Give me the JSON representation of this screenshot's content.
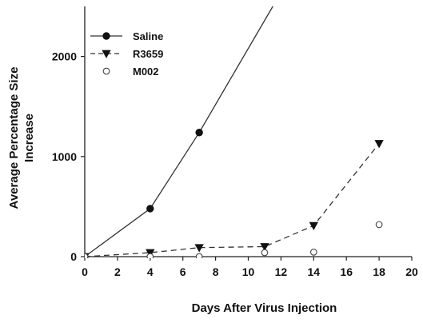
{
  "chart_data": {
    "type": "line",
    "title": "",
    "xlabel": "Days After Virus Injection",
    "ylabel_lines": [
      "Average Percentage Size",
      "Increase"
    ],
    "xlim": [
      0,
      20
    ],
    "ylim": [
      0,
      2500
    ],
    "x_ticks": [
      0,
      2,
      4,
      6,
      8,
      10,
      12,
      14,
      16,
      18,
      20
    ],
    "y_ticks": [
      0,
      1000,
      2000
    ],
    "grid": false,
    "legend_position": "top-left",
    "series": [
      {
        "name": "Saline",
        "marker": "filled-circle",
        "line": "solid",
        "color": "#111111",
        "x": [
          0,
          4,
          7,
          11.5
        ],
        "y": [
          0,
          480,
          1240,
          2500
        ],
        "marker_count": 3
      },
      {
        "name": "R3659",
        "marker": "filled-triangle-down",
        "line": "dashed",
        "color": "#111111",
        "x": [
          0,
          4,
          7,
          11,
          14,
          18
        ],
        "y": [
          0,
          40,
          90,
          100,
          310,
          1130
        ],
        "marker_count": 6
      },
      {
        "name": "M002",
        "marker": "open-circle",
        "line": "none",
        "color": "#111111",
        "x": [
          0,
          4,
          7,
          11,
          14,
          18
        ],
        "y": [
          0,
          0,
          0,
          40,
          45,
          320
        ],
        "marker_count": 6
      }
    ]
  }
}
